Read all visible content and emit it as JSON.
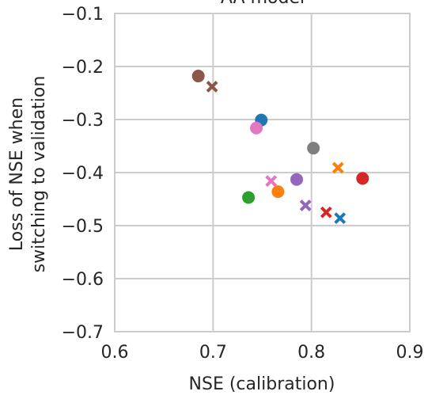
{
  "chart_data": {
    "type": "scatter",
    "title": "AA model",
    "xlabel": "NSE (calibration)",
    "ylabel_lines": [
      "Loss of NSE when",
      "switching to validation"
    ],
    "xlim": [
      0.6,
      0.9
    ],
    "ylim": [
      -0.7,
      -0.1
    ],
    "xticks": [
      0.6,
      0.7,
      0.8,
      0.9
    ],
    "xtick_labels": [
      "0.6",
      "0.7",
      "0.8",
      "0.9"
    ],
    "yticks": [
      -0.1,
      -0.2,
      -0.3,
      -0.4,
      -0.5,
      -0.6,
      -0.7
    ],
    "ytick_labels": [
      "−0.1",
      "−0.2",
      "−0.3",
      "−0.4",
      "−0.5",
      "−0.6",
      "−0.7"
    ],
    "grid": true,
    "points": [
      {
        "x": 0.749,
        "y": -0.301,
        "marker": "circle",
        "color": "#1f77b4"
      },
      {
        "x": 0.829,
        "y": -0.486,
        "marker": "x",
        "color": "#1f77b4"
      },
      {
        "x": 0.766,
        "y": -0.436,
        "marker": "circle",
        "color": "#ff7f0e"
      },
      {
        "x": 0.827,
        "y": -0.391,
        "marker": "x",
        "color": "#ff7f0e"
      },
      {
        "x": 0.736,
        "y": -0.447,
        "marker": "circle",
        "color": "#2ca02c"
      },
      {
        "x": 0.852,
        "y": -0.411,
        "marker": "circle",
        "color": "#d62728"
      },
      {
        "x": 0.815,
        "y": -0.475,
        "marker": "x",
        "color": "#d62728"
      },
      {
        "x": 0.785,
        "y": -0.413,
        "marker": "circle",
        "color": "#9467bd"
      },
      {
        "x": 0.794,
        "y": -0.462,
        "marker": "x",
        "color": "#9467bd"
      },
      {
        "x": 0.685,
        "y": -0.218,
        "marker": "circle",
        "color": "#8c564b"
      },
      {
        "x": 0.699,
        "y": -0.238,
        "marker": "x",
        "color": "#8c564b"
      },
      {
        "x": 0.744,
        "y": -0.316,
        "marker": "circle",
        "color": "#e377c2"
      },
      {
        "x": 0.759,
        "y": -0.416,
        "marker": "x",
        "color": "#e377c2"
      },
      {
        "x": 0.802,
        "y": -0.354,
        "marker": "circle",
        "color": "#7f7f7f"
      }
    ]
  }
}
